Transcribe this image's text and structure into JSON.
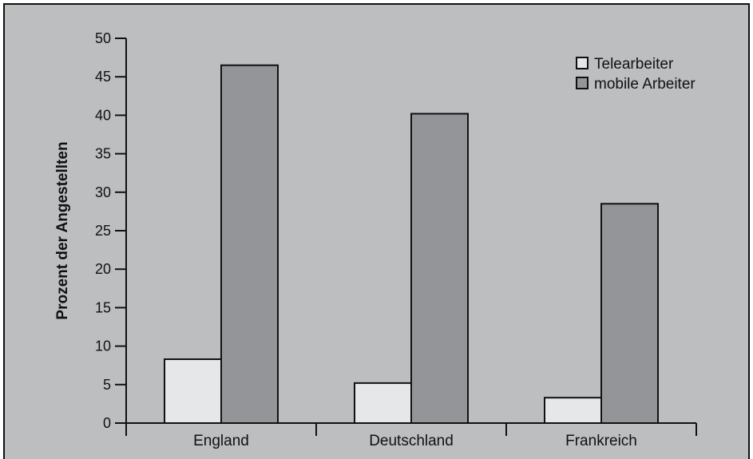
{
  "chart_data": {
    "type": "bar",
    "title": "",
    "xlabel": "",
    "ylabel": "Prozent der Angestellten",
    "ylim": [
      0,
      50
    ],
    "yticks": [
      0,
      5,
      10,
      15,
      20,
      25,
      30,
      35,
      40,
      45,
      50
    ],
    "categories": [
      "England",
      "Deutschland",
      "Frankreich"
    ],
    "series": [
      {
        "name": "Telearbeiter",
        "values": [
          8.3,
          5.2,
          3.3
        ],
        "color": "#e6e7e9"
      },
      {
        "name": "mobile Arbeiter",
        "values": [
          46.5,
          40.2,
          28.5
        ],
        "color": "#939598"
      }
    ],
    "background_color": "#bcbec0",
    "grid": false,
    "legend_position": "top-right"
  }
}
